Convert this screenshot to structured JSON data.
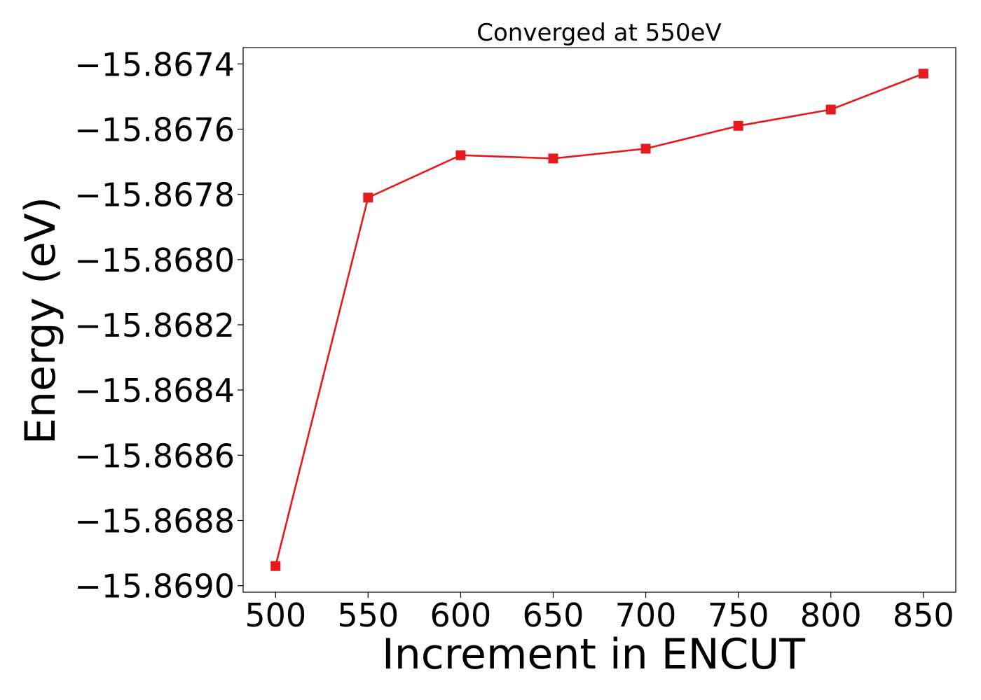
{
  "chart_data": {
    "type": "line",
    "title": "Converged at 550eV",
    "xlabel": "Increment in ENCUT",
    "ylabel": "Energy (eV)",
    "x": [
      500,
      550,
      600,
      650,
      700,
      750,
      800,
      850
    ],
    "series": [
      {
        "values": [
          -15.86894,
          -15.86781,
          -15.86768,
          -15.86769,
          -15.86766,
          -15.86759,
          -15.86754,
          -15.86743
        ],
        "color": "#e41a1c",
        "marker": "square"
      }
    ],
    "xlim": [
      482.5,
      867.5
    ],
    "ylim": [
      -15.86902,
      -15.86735
    ],
    "xticks": [
      500,
      550,
      600,
      650,
      700,
      750,
      800,
      850
    ],
    "xtick_labels": [
      "500",
      "550",
      "600",
      "650",
      "700",
      "750",
      "800",
      "850"
    ],
    "yticks": [
      -15.8674,
      -15.8676,
      -15.8678,
      -15.868,
      -15.8682,
      -15.8684,
      -15.8686,
      -15.8688,
      -15.869
    ],
    "ytick_labels": [
      "−15.8674",
      "−15.8676",
      "−15.8678",
      "−15.8680",
      "−15.8682",
      "−15.8684",
      "−15.8686",
      "−15.8688",
      "−15.8690"
    ],
    "grid": false,
    "legend": false
  }
}
